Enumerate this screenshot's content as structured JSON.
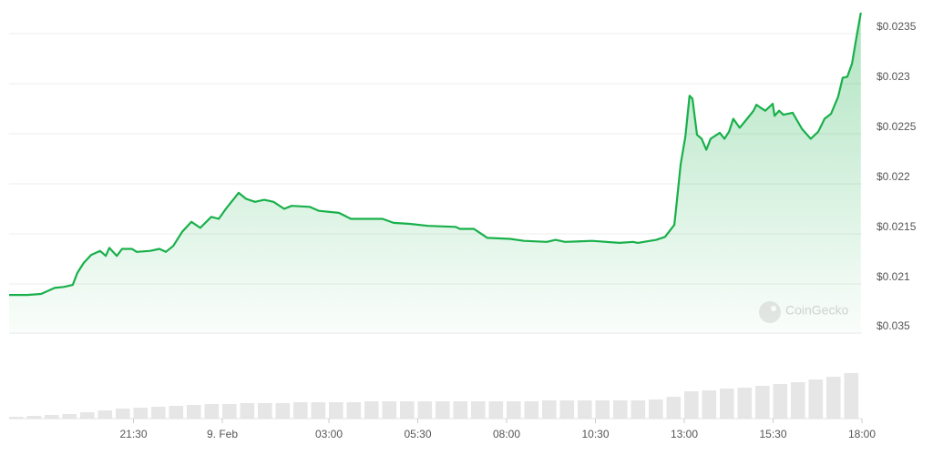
{
  "chart_data": [
    {
      "type": "line",
      "watermark": "CoinGecko",
      "color": "#18b04a",
      "grid": true,
      "xlim": [
        0,
        24
      ],
      "xticks": [
        {
          "value": 3.5,
          "label": "21:30"
        },
        {
          "value": 6,
          "label": "9. Feb"
        },
        {
          "value": 9,
          "label": "03:00"
        },
        {
          "value": 11.5,
          "label": "05:30"
        },
        {
          "value": 14,
          "label": "08:00"
        },
        {
          "value": 16.5,
          "label": "10:30"
        },
        {
          "value": 19,
          "label": "13:00"
        },
        {
          "value": 21.5,
          "label": "15:30"
        },
        {
          "value": 24,
          "label": "18:00"
        }
      ],
      "ylim": [
        0.0205,
        0.02375
      ],
      "yticks": [
        {
          "value": 0.021,
          "label": "$0.021"
        },
        {
          "value": 0.0215,
          "label": "$0.0215"
        },
        {
          "value": 0.022,
          "label": "$0.022"
        },
        {
          "value": 0.0225,
          "label": "$0.0225"
        },
        {
          "value": 0.023,
          "label": "$0.023"
        },
        {
          "value": 0.0235,
          "label": "$0.0235"
        }
      ],
      "x": [
        0,
        0.51,
        0.9,
        1.03,
        1.28,
        1.54,
        1.79,
        1.92,
        2.1,
        2.31,
        2.56,
        2.72,
        2.82,
        3.03,
        3.18,
        3.46,
        3.59,
        3.97,
        4.23,
        4.41,
        4.62,
        4.87,
        5.13,
        5.38,
        5.69,
        5.9,
        6.1,
        6.46,
        6.67,
        6.92,
        7.18,
        7.44,
        7.74,
        7.95,
        8.46,
        8.72,
        9.28,
        9.62,
        9.87,
        10.51,
        10.82,
        11.28,
        11.79,
        12.56,
        12.69,
        13.08,
        13.46,
        14.1,
        14.49,
        15.13,
        15.38,
        15.64,
        16.41,
        17.18,
        17.56,
        17.69,
        18.21,
        18.46,
        18.72,
        18.77,
        18.9,
        19.03,
        19.15,
        19.23,
        19.36,
        19.49,
        19.62,
        19.74,
        20,
        20.13,
        20.26,
        20.38,
        20.56,
        20.77,
        20.95,
        21.03,
        21.15,
        21.28,
        21.49,
        21.54,
        21.67,
        21.79,
        22.05,
        22.31,
        22.56,
        22.77,
        22.95,
        23.13,
        23.33,
        23.46,
        23.59,
        23.72,
        23.85,
        23.97
      ],
      "values": [
        0.02089,
        0.02089,
        0.0209,
        0.02092,
        0.02096,
        0.02097,
        0.02099,
        0.02111,
        0.02121,
        0.02129,
        0.02133,
        0.02128,
        0.02136,
        0.02128,
        0.02135,
        0.02135,
        0.02132,
        0.02133,
        0.02135,
        0.02132,
        0.02138,
        0.02152,
        0.02162,
        0.02156,
        0.02167,
        0.02165,
        0.02175,
        0.02191,
        0.02185,
        0.02182,
        0.02184,
        0.02182,
        0.02175,
        0.02178,
        0.02177,
        0.02173,
        0.02171,
        0.02165,
        0.02165,
        0.02165,
        0.02161,
        0.0216,
        0.02158,
        0.02157,
        0.02155,
        0.02155,
        0.02146,
        0.02145,
        0.02143,
        0.02142,
        0.02144,
        0.02142,
        0.02143,
        0.02141,
        0.02142,
        0.02141,
        0.02144,
        0.02147,
        0.02159,
        0.02175,
        0.0222,
        0.02247,
        0.02288,
        0.02285,
        0.02249,
        0.02245,
        0.02234,
        0.02245,
        0.02251,
        0.02245,
        0.02252,
        0.02265,
        0.02256,
        0.02265,
        0.02273,
        0.02279,
        0.02276,
        0.02273,
        0.0228,
        0.02268,
        0.02273,
        0.02269,
        0.02271,
        0.02255,
        0.02245,
        0.02252,
        0.02265,
        0.0227,
        0.02287,
        0.02306,
        0.02307,
        0.0232,
        0.02347,
        0.02371
      ]
    },
    {
      "type": "bar",
      "color": "#e6e6e6",
      "xlim": [
        0,
        24
      ],
      "ylim": [
        0,
        0.035
      ],
      "yticks": [
        {
          "value": 0.035,
          "label": "$0.035"
        }
      ],
      "x": [
        0,
        0.5,
        1,
        1.5,
        2,
        2.5,
        3,
        3.5,
        4,
        4.5,
        5,
        5.5,
        6,
        6.5,
        7,
        7.5,
        8,
        8.5,
        9,
        9.5,
        10,
        10.5,
        11,
        11.5,
        12,
        12.5,
        13,
        13.5,
        14,
        14.5,
        15,
        15.5,
        16,
        16.5,
        17,
        17.5,
        18,
        18.5,
        19,
        19.5,
        20,
        20.5,
        21,
        21.5,
        22,
        22.5,
        23,
        23.5
      ],
      "values": [
        0.00074,
        0.00112,
        0.00149,
        0.00186,
        0.0026,
        0.00335,
        0.00409,
        0.00446,
        0.00484,
        0.00521,
        0.00558,
        0.00595,
        0.00595,
        0.00632,
        0.00632,
        0.00632,
        0.0067,
        0.0067,
        0.0067,
        0.0067,
        0.00707,
        0.00707,
        0.00707,
        0.00707,
        0.00707,
        0.00707,
        0.00707,
        0.00707,
        0.00707,
        0.00707,
        0.00744,
        0.00744,
        0.00744,
        0.00744,
        0.00744,
        0.00744,
        0.00781,
        0.00893,
        0.01116,
        0.01153,
        0.01228,
        0.01265,
        0.01339,
        0.01414,
        0.01488,
        0.016,
        0.01711,
        0.0186
      ]
    }
  ]
}
